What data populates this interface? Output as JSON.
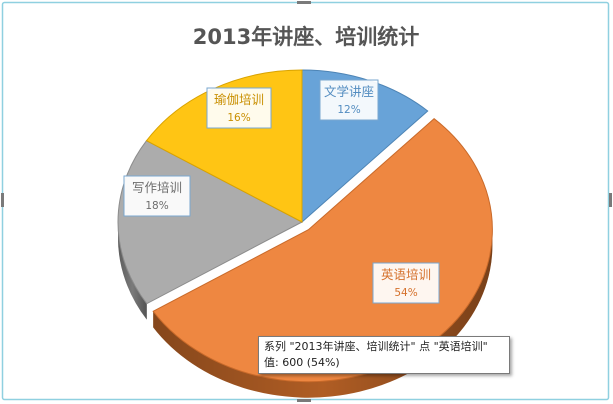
{
  "chart_data": {
    "type": "pie",
    "title": "2013年讲座、培训统计",
    "categories": [
      "文学讲座",
      "英语培训",
      "写作培训",
      "瑜伽培训"
    ],
    "values": [
      133,
      600,
      200,
      178
    ],
    "percent_labels": [
      "12%",
      "54%",
      "18%",
      "16%"
    ],
    "colors": [
      "#5b9bd5",
      "#ed7d31",
      "#a5a5a5",
      "#ffc000"
    ],
    "legend": "none",
    "style": "3d-exploded"
  },
  "tooltip": {
    "line1": "系列 \"2013年讲座、培训统计\" 点 \"英语培训\"",
    "line2": "值: 600 (54%)"
  }
}
